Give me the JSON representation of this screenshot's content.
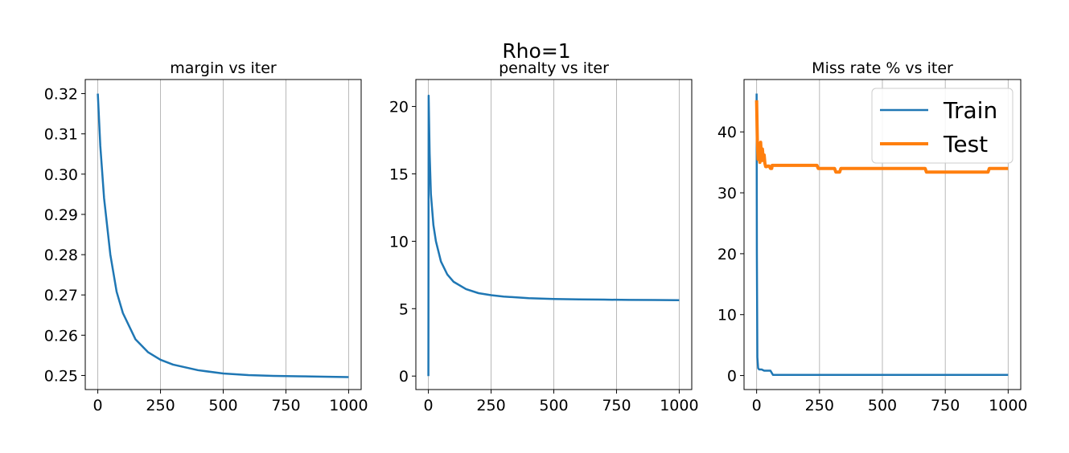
{
  "figure": {
    "title": "Rho=1"
  },
  "chart_data": [
    {
      "type": "line",
      "title": "margin vs iter",
      "xlabel": "",
      "ylabel": "",
      "xlim": [
        -50,
        1050
      ],
      "ylim": [
        0.2465,
        0.3235
      ],
      "xticks": [
        0,
        250,
        500,
        750,
        1000
      ],
      "xtick_labels": [
        "0",
        "250",
        "500",
        "750",
        "1000"
      ],
      "yticks": [
        0.25,
        0.26,
        0.27,
        0.28,
        0.29,
        0.3,
        0.31,
        0.32
      ],
      "ytick_labels": [
        "0.25",
        "0.26",
        "0.27",
        "0.28",
        "0.29",
        "0.30",
        "0.31",
        "0.32"
      ],
      "grid": "x",
      "legend": "none",
      "series": [
        {
          "color": "#1f77b4",
          "x": [
            0,
            10,
            25,
            50,
            75,
            100,
            150,
            200,
            250,
            300,
            400,
            500,
            600,
            700,
            800,
            900,
            1000
          ],
          "y": [
            0.32,
            0.307,
            0.294,
            0.28,
            0.2708,
            0.2655,
            0.259,
            0.2558,
            0.2539,
            0.2527,
            0.2513,
            0.2505,
            0.2501,
            0.2499,
            0.2498,
            0.2497,
            0.2496
          ]
        }
      ]
    },
    {
      "type": "line",
      "title": "penalty vs iter",
      "xlabel": "",
      "ylabel": "",
      "xlim": [
        -50,
        1050
      ],
      "ylim": [
        -1,
        22
      ],
      "xticks": [
        0,
        250,
        500,
        750,
        1000
      ],
      "xtick_labels": [
        "0",
        "250",
        "500",
        "750",
        "1000"
      ],
      "yticks": [
        0,
        5,
        10,
        15,
        20
      ],
      "ytick_labels": [
        "0",
        "5",
        "10",
        "15",
        "20"
      ],
      "grid": "x",
      "legend": "none",
      "series": [
        {
          "color": "#1f77b4",
          "x": [
            0,
            1,
            5,
            10,
            20,
            30,
            50,
            75,
            100,
            150,
            200,
            250,
            300,
            400,
            500,
            600,
            700,
            800,
            900,
            1000
          ],
          "y": [
            0,
            20.8,
            16.5,
            13.5,
            11.2,
            10.0,
            8.5,
            7.55,
            7.0,
            6.45,
            6.15,
            6.0,
            5.9,
            5.78,
            5.72,
            5.69,
            5.67,
            5.65,
            5.64,
            5.63
          ]
        }
      ]
    },
    {
      "type": "line",
      "title": "Miss rate % vs iter",
      "xlabel": "",
      "ylabel": "",
      "xlim": [
        -50,
        1050
      ],
      "ylim": [
        -2.3,
        48.6
      ],
      "xticks": [
        0,
        250,
        500,
        750,
        1000
      ],
      "xtick_labels": [
        "0",
        "250",
        "500",
        "750",
        "1000"
      ],
      "yticks": [
        0,
        10,
        20,
        30,
        40
      ],
      "ytick_labels": [
        "0",
        "10",
        "20",
        "30",
        "40"
      ],
      "grid": "x",
      "legend": "top-right",
      "series": [
        {
          "name": "Train",
          "color": "#1f77b4",
          "x": [
            0,
            1,
            3,
            6,
            10,
            20,
            30,
            40,
            55,
            65,
            1000
          ],
          "y": [
            46.3,
            20,
            3,
            1.2,
            1.0,
            1.0,
            0.8,
            0.8,
            0.8,
            0.1,
            0.1
          ]
        },
        {
          "name": "Test",
          "color": "#ff7f0e",
          "x": [
            0,
            3,
            6,
            9,
            13,
            16,
            20,
            23,
            27,
            30,
            33,
            36,
            40,
            45,
            50,
            55,
            60,
            62,
            65,
            70,
            80,
            100,
            150,
            200,
            240,
            245,
            300,
            310,
            315,
            330,
            335,
            400,
            500,
            600,
            670,
            675,
            800,
            900,
            920,
            925,
            1000
          ],
          "y": [
            45.2,
            38.5,
            35.5,
            36.5,
            35.0,
            38.3,
            35.3,
            37.2,
            35.3,
            36.2,
            34.8,
            34.3,
            34.3,
            34.4,
            34.4,
            34.0,
            34.0,
            34.5,
            34.5,
            34.5,
            34.5,
            34.5,
            34.5,
            34.5,
            34.5,
            34.0,
            34.0,
            34.0,
            33.4,
            33.4,
            34.0,
            34.0,
            34.0,
            34.0,
            34.0,
            33.4,
            33.4,
            33.4,
            33.4,
            34.0,
            34.0
          ]
        }
      ]
    }
  ]
}
